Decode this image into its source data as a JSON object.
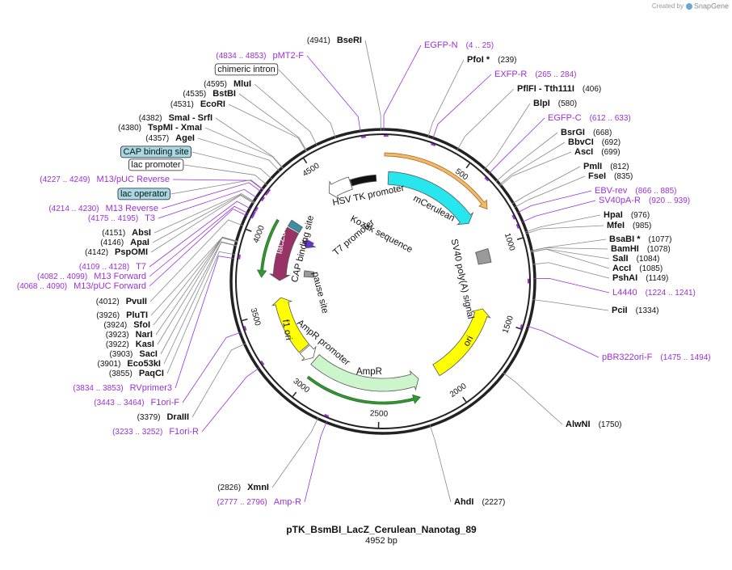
{
  "credit": {
    "prefix": "Created by",
    "brand": "SnapGene"
  },
  "title": "pTK_BsmBI_LacZ_Cerulean_Nanotag_89",
  "length": "4952 bp",
  "sites": [
    {
      "name": "BseRI",
      "position": "(4941)"
    },
    {
      "name": "PfoI *",
      "position": "(239)"
    },
    {
      "name": "PflFI  -  Tth111I",
      "position": "(406)"
    },
    {
      "name": "BlpI",
      "position": "(580)"
    },
    {
      "name": "BsrGI",
      "position": "(668)"
    },
    {
      "name": "BbvCI",
      "position": "(692)"
    },
    {
      "name": "AscI",
      "position": "(699)"
    },
    {
      "name": "PmlI",
      "position": "(812)"
    },
    {
      "name": "FseI",
      "position": "(835)"
    },
    {
      "name": "HpaI",
      "position": "(976)"
    },
    {
      "name": "MfeI",
      "position": "(985)"
    },
    {
      "name": "BsaBI *",
      "position": "(1077)"
    },
    {
      "name": "BamHI",
      "position": "(1078)"
    },
    {
      "name": "SalI",
      "position": "(1084)"
    },
    {
      "name": "AccI",
      "position": "(1085)"
    },
    {
      "name": "PshAI",
      "position": "(1149)"
    },
    {
      "name": "PciI",
      "position": "(1334)"
    },
    {
      "name": "AlwNI",
      "position": "(1750)"
    },
    {
      "name": "AhdI",
      "position": "(2227)"
    },
    {
      "name": "XmnI",
      "position": "(2826)"
    },
    {
      "name": "DraIII",
      "position": "(3379)"
    },
    {
      "name": "PaqCI",
      "position": "(3855)"
    },
    {
      "name": "Eco53kI",
      "position": "(3901)"
    },
    {
      "name": "SacI",
      "position": "(3903)"
    },
    {
      "name": "KasI",
      "position": "(3922)"
    },
    {
      "name": "NarI",
      "position": "(3923)"
    },
    {
      "name": "SfoI",
      "position": "(3924)"
    },
    {
      "name": "PluTI",
      "position": "(3926)"
    },
    {
      "name": "PvuII",
      "position": "(4012)"
    },
    {
      "name": "PspOMI",
      "position": "(4142)"
    },
    {
      "name": "ApaI",
      "position": "(4146)"
    },
    {
      "name": "AbsI",
      "position": "(4151)"
    },
    {
      "name": "AgeI",
      "position": "(4357)"
    },
    {
      "name": "TspMI  -  XmaI",
      "position": "(4380)"
    },
    {
      "name": "SmaI  -  SrfI",
      "position": "(4382)"
    },
    {
      "name": "EcoRI",
      "position": "(4531)"
    },
    {
      "name": "BstBI",
      "position": "(4535)"
    },
    {
      "name": "MluI",
      "position": "(4595)"
    }
  ],
  "primers": [
    {
      "name": "pMT2-F",
      "range": "(4834 .. 4853)"
    },
    {
      "name": "EGFP-N",
      "range": "(4 .. 25)"
    },
    {
      "name": "EXFP-R",
      "range": "(265 .. 284)"
    },
    {
      "name": "EGFP-C",
      "range": "(612 .. 633)"
    },
    {
      "name": "EBV-rev",
      "range": "(866 .. 885)"
    },
    {
      "name": "SV40pA-R",
      "range": "(920 .. 939)"
    },
    {
      "name": "L4440",
      "range": "(1224 .. 1241)"
    },
    {
      "name": "pBR322ori-F",
      "range": "(1475 .. 1494)"
    },
    {
      "name": "Amp-R",
      "range": "(2777 .. 2796)"
    },
    {
      "name": "F1ori-R",
      "range": "(3233 .. 3252)"
    },
    {
      "name": "F1ori-F",
      "range": "(3443 .. 3464)"
    },
    {
      "name": "RVprimer3",
      "range": "(3834 .. 3853)"
    },
    {
      "name": "M13/pUC Forward",
      "range": "(4068 .. 4090)"
    },
    {
      "name": "M13 Forward",
      "range": "(4082 .. 4099)"
    },
    {
      "name": "T7",
      "range": "(4109 .. 4128)"
    },
    {
      "name": "T3",
      "range": "(4175 .. 4195)"
    },
    {
      "name": "M13 Reverse",
      "range": "(4214 .. 4230)"
    },
    {
      "name": "M13/pUC Reverse",
      "range": "(4227 .. 4249)"
    }
  ],
  "feature_boxes": [
    "chimeric intron",
    "CAP binding site",
    "lac promoter",
    "lac operator"
  ],
  "features": [
    "HSV TK promoter",
    "mCerulean",
    "T7 promoter",
    "Kozak sequence",
    "SV40 poly(A) signal",
    "ori",
    "AmpR",
    "AmpR promoter",
    "f1 ori",
    "pause site",
    "CAP binding site",
    "lacZα"
  ],
  "ruler": [
    500,
    1000,
    1500,
    2000,
    2500,
    3000,
    3500,
    4000,
    4500
  ]
}
